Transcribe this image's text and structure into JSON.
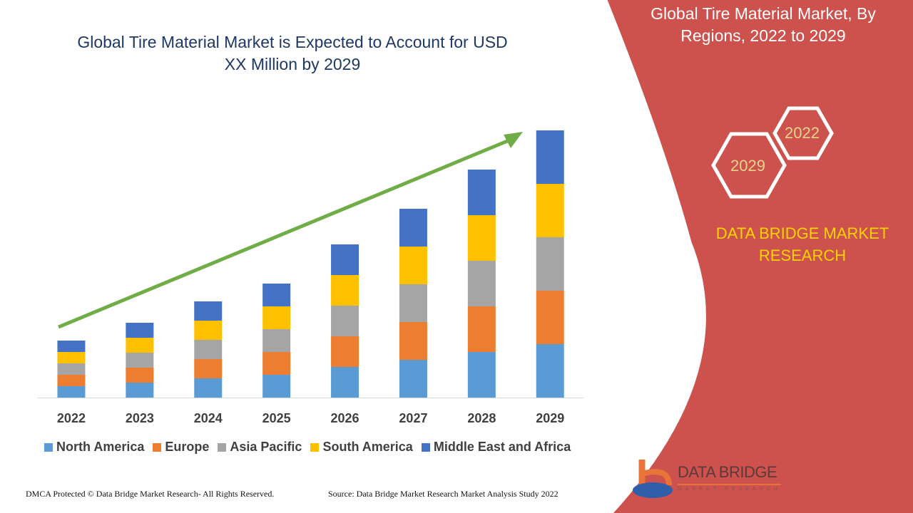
{
  "title": "Global Tire Material Market is Expected to Account for USD XX Million by 2029",
  "side_panel": {
    "title": "Global Tire Material Market, By Regions, 2022 to 2029",
    "hex_labels": [
      "2022",
      "2029"
    ],
    "brand": "DATA BRIDGE MARKET RESEARCH",
    "logo_text": "DATA BRIDGE",
    "logo_subtext": "MARKET RESEARCH",
    "color": "#cd514c"
  },
  "footer": {
    "left": "DMCA Protected © Data Bridge Market Research- All Rights Reserved.",
    "right": "Source: Data Bridge Market Research Market Analysis Study 2022"
  },
  "chart_data": {
    "type": "bar",
    "stacked": true,
    "title": "Global Tire Material Market is Expected to Account for USD XX Million by 2029",
    "categories": [
      "2022",
      "2023",
      "2024",
      "2025",
      "2026",
      "2027",
      "2028",
      "2029"
    ],
    "series": [
      {
        "name": "North America",
        "color": "#5b9bd5",
        "values": [
          16,
          21,
          27,
          32,
          43,
          53,
          64,
          75
        ]
      },
      {
        "name": "Europe",
        "color": "#ed7d31",
        "values": [
          16,
          21,
          27,
          32,
          43,
          53,
          64,
          75
        ]
      },
      {
        "name": "Asia Pacific",
        "color": "#a5a5a5",
        "values": [
          16,
          21,
          27,
          32,
          43,
          53,
          64,
          75
        ]
      },
      {
        "name": "South America",
        "color": "#ffc000",
        "values": [
          16,
          21,
          27,
          32,
          43,
          53,
          64,
          75
        ]
      },
      {
        "name": "Middle East and Africa",
        "color": "#4472c4",
        "values": [
          16,
          21,
          27,
          32,
          43,
          53,
          64,
          75
        ]
      }
    ],
    "y_axis_shown": false,
    "grid": false,
    "legend": "bottom",
    "trend_arrow": {
      "color": "#70ad47",
      "direction": "up"
    }
  }
}
